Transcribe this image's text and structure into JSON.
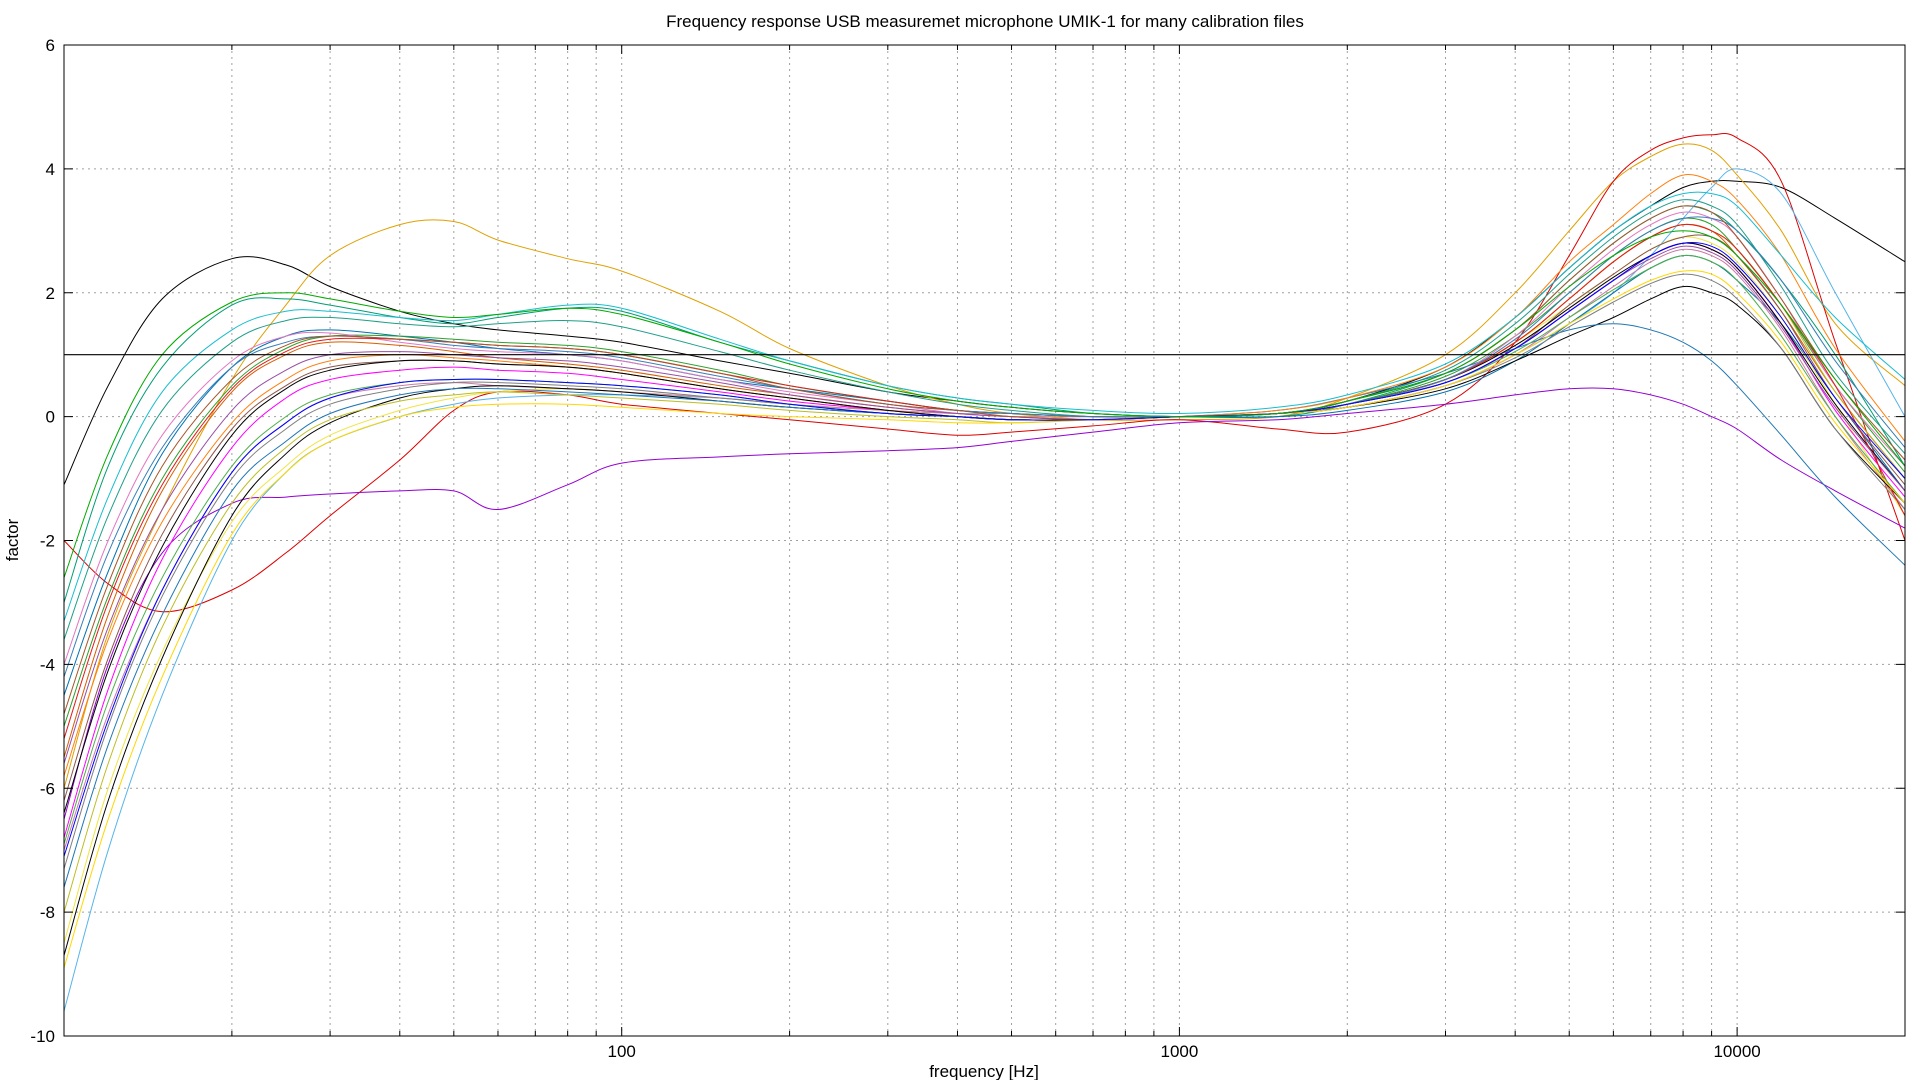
{
  "chart_data": {
    "type": "line",
    "title": "Frequency response USB measuremet microphone UMIK-1 for many calibration files",
    "xlabel": "frequency [Hz]",
    "ylabel": "factor",
    "xscale": "log",
    "xlim": [
      10,
      20000
    ],
    "ylim": [
      -10,
      6
    ],
    "xticks": [
      {
        "value": 100,
        "label": "100"
      },
      {
        "value": 1000,
        "label": "1000"
      },
      {
        "value": 10000,
        "label": "10000"
      }
    ],
    "yticks": [
      {
        "value": 6,
        "label": "6"
      },
      {
        "value": 4,
        "label": "4"
      },
      {
        "value": 2,
        "label": "2"
      },
      {
        "value": 0,
        "label": "0"
      },
      {
        "value": -2,
        "label": "-2"
      },
      {
        "value": -4,
        "label": "-4"
      },
      {
        "value": -6,
        "label": "-6"
      },
      {
        "value": -8,
        "label": "-8"
      },
      {
        "value": -10,
        "label": "-10"
      }
    ],
    "grid": true,
    "legend": "none",
    "reference_line": {
      "y": 1
    },
    "freq_points": [
      10,
      12,
      15,
      20,
      25,
      30,
      40,
      50,
      60,
      80,
      100,
      150,
      200,
      300,
      400,
      500,
      700,
      1000,
      1500,
      2000,
      3000,
      4000,
      5000,
      6000,
      7000,
      8000,
      9000,
      10000,
      12000,
      15000,
      20000
    ],
    "series": [
      {
        "color": "#000000",
        "values": [
          -1.1,
          0.5,
          1.9,
          2.55,
          2.45,
          2.1,
          1.7,
          1.5,
          1.4,
          1.3,
          1.2,
          0.9,
          0.7,
          0.4,
          0.25,
          0.15,
          0.05,
          0.0,
          0.05,
          0.25,
          0.8,
          1.6,
          2.4,
          3.0,
          3.4,
          3.7,
          3.8,
          3.8,
          3.7,
          3.2,
          2.5
        ]
      },
      {
        "color": "#e0a000",
        "values": [
          -6.0,
          -3.5,
          -1.5,
          0.6,
          1.8,
          2.6,
          3.1,
          3.15,
          2.85,
          2.55,
          2.35,
          1.7,
          1.1,
          0.5,
          0.2,
          0.05,
          -0.05,
          -0.05,
          0.0,
          0.3,
          1.0,
          2.0,
          3.0,
          3.8,
          4.2,
          4.4,
          4.3,
          3.9,
          3.0,
          1.5,
          0.5
        ]
      },
      {
        "color": "#dd0000",
        "values": [
          -2.0,
          -2.7,
          -3.15,
          -2.8,
          -2.2,
          -1.6,
          -0.7,
          0.1,
          0.4,
          0.35,
          0.2,
          0.05,
          -0.05,
          -0.2,
          -0.3,
          -0.25,
          -0.15,
          -0.05,
          -0.2,
          -0.25,
          0.2,
          1.2,
          2.6,
          3.8,
          4.3,
          4.5,
          4.55,
          4.5,
          3.8,
          1.2,
          -2.0
        ]
      },
      {
        "color": "#9400d3",
        "values": [
          -6.5,
          -4.0,
          -2.2,
          -1.4,
          -1.3,
          -1.25,
          -1.2,
          -1.2,
          -1.5,
          -1.1,
          -0.75,
          -0.65,
          -0.6,
          -0.55,
          -0.5,
          -0.4,
          -0.25,
          -0.1,
          -0.05,
          0.05,
          0.2,
          0.35,
          0.45,
          0.45,
          0.35,
          0.2,
          0.0,
          -0.2,
          -0.7,
          -1.2,
          -1.8
        ]
      },
      {
        "color": "#009e73",
        "values": [
          -3.0,
          -0.8,
          0.8,
          1.8,
          1.9,
          1.8,
          1.6,
          1.5,
          1.6,
          1.75,
          1.7,
          1.2,
          0.9,
          0.5,
          0.3,
          0.2,
          0.05,
          0.0,
          0.0,
          0.2,
          0.7,
          1.4,
          2.2,
          2.8,
          3.2,
          3.4,
          3.3,
          3.0,
          2.2,
          1.0,
          -0.8
        ]
      },
      {
        "color": "#56b4e9",
        "values": [
          -9.6,
          -7.0,
          -4.5,
          -2.0,
          -0.9,
          -0.4,
          0.0,
          0.2,
          0.3,
          0.35,
          0.35,
          0.3,
          0.2,
          0.1,
          0.05,
          0.05,
          0.0,
          0.0,
          0.05,
          0.15,
          0.5,
          1.0,
          1.5,
          2.0,
          2.6,
          3.2,
          3.7,
          4.0,
          3.6,
          2.0,
          0.0
        ]
      },
      {
        "color": "#0072b2",
        "values": [
          -4.5,
          -2.5,
          -0.6,
          0.8,
          1.3,
          1.4,
          1.3,
          1.2,
          1.1,
          1.0,
          0.9,
          0.6,
          0.45,
          0.25,
          0.1,
          0.05,
          0.0,
          0.0,
          0.0,
          0.1,
          0.4,
          0.9,
          1.5,
          2.0,
          2.4,
          2.6,
          2.5,
          2.2,
          1.5,
          0.3,
          -1.2
        ]
      },
      {
        "color": "#f0e442",
        "values": [
          -8.5,
          -6.0,
          -3.8,
          -1.7,
          -0.8,
          -0.3,
          0.1,
          0.3,
          0.4,
          0.45,
          0.4,
          0.3,
          0.2,
          0.1,
          0.05,
          0.0,
          0.0,
          0.0,
          0.05,
          0.2,
          0.6,
          1.2,
          1.8,
          2.3,
          2.7,
          2.9,
          2.8,
          2.5,
          1.6,
          0.2,
          -1.6
        ]
      },
      {
        "color": "#d55e00",
        "values": [
          -5.5,
          -3.2,
          -1.2,
          0.4,
          1.0,
          1.2,
          1.15,
          1.05,
          0.95,
          0.85,
          0.75,
          0.5,
          0.35,
          0.15,
          0.05,
          0.0,
          -0.05,
          0.0,
          0.05,
          0.2,
          0.6,
          1.2,
          1.9,
          2.5,
          2.9,
          3.1,
          3.0,
          2.6,
          1.7,
          0.4,
          -1.0
        ]
      },
      {
        "color": "#cc79a7",
        "values": [
          -7.0,
          -4.8,
          -2.8,
          -0.9,
          -0.1,
          0.3,
          0.5,
          0.55,
          0.5,
          0.45,
          0.4,
          0.3,
          0.2,
          0.1,
          0.05,
          0.0,
          0.0,
          0.0,
          0.05,
          0.15,
          0.5,
          1.0,
          1.6,
          2.1,
          2.5,
          2.7,
          2.6,
          2.3,
          1.4,
          0.0,
          -1.5
        ]
      },
      {
        "color": "#000000",
        "values": [
          -8.7,
          -6.2,
          -3.9,
          -1.6,
          -0.6,
          -0.1,
          0.3,
          0.45,
          0.5,
          0.45,
          0.4,
          0.25,
          0.15,
          0.05,
          0.0,
          -0.05,
          -0.05,
          0.0,
          0.05,
          0.15,
          0.45,
          0.9,
          1.3,
          1.6,
          1.9,
          2.1,
          2.0,
          1.8,
          1.1,
          -0.2,
          -1.4
        ]
      },
      {
        "color": "#1f9e89",
        "values": [
          -3.6,
          -1.6,
          0.1,
          1.2,
          1.55,
          1.6,
          1.5,
          1.45,
          1.5,
          1.55,
          1.45,
          1.05,
          0.75,
          0.4,
          0.2,
          0.1,
          0.0,
          0.0,
          0.05,
          0.25,
          0.75,
          1.5,
          2.3,
          2.9,
          3.3,
          3.5,
          3.4,
          3.1,
          2.1,
          0.7,
          -0.6
        ]
      },
      {
        "color": "#ff00ff",
        "values": [
          -6.8,
          -4.4,
          -2.3,
          -0.5,
          0.3,
          0.6,
          0.75,
          0.8,
          0.75,
          0.7,
          0.6,
          0.4,
          0.25,
          0.1,
          0.0,
          -0.05,
          -0.05,
          0.0,
          0.05,
          0.2,
          0.55,
          1.1,
          1.7,
          2.2,
          2.6,
          2.8,
          2.7,
          2.4,
          1.5,
          0.1,
          -1.3
        ]
      },
      {
        "color": "#2ca02c",
        "values": [
          -5.0,
          -2.9,
          -1.0,
          0.5,
          1.1,
          1.3,
          1.3,
          1.25,
          1.2,
          1.15,
          1.05,
          0.75,
          0.5,
          0.25,
          0.1,
          0.05,
          0.0,
          0.0,
          0.05,
          0.2,
          0.65,
          1.3,
          2.0,
          2.6,
          3.0,
          3.2,
          3.1,
          2.7,
          1.8,
          0.5,
          -0.9
        ]
      },
      {
        "color": "#1f77b4",
        "values": [
          -7.6,
          -5.3,
          -3.2,
          -1.2,
          -0.4,
          0.05,
          0.35,
          0.45,
          0.45,
          0.4,
          0.35,
          0.25,
          0.15,
          0.05,
          0.0,
          -0.05,
          -0.05,
          0.0,
          0.1,
          0.3,
          0.7,
          1.1,
          1.4,
          1.5,
          1.4,
          1.2,
          0.9,
          0.5,
          -0.3,
          -1.3,
          -2.4
        ]
      },
      {
        "color": "#e377c2",
        "values": [
          -4.0,
          -2.0,
          -0.3,
          0.9,
          1.3,
          1.35,
          1.2,
          1.1,
          1.05,
          1.0,
          0.9,
          0.6,
          0.4,
          0.2,
          0.05,
          0.0,
          -0.05,
          0.0,
          0.05,
          0.2,
          0.6,
          1.3,
          2.1,
          2.7,
          3.1,
          3.3,
          3.2,
          2.9,
          1.9,
          0.5,
          -0.8
        ]
      },
      {
        "color": "#8c564b",
        "values": [
          -6.2,
          -3.9,
          -1.9,
          -0.2,
          0.5,
          0.8,
          0.9,
          0.9,
          0.85,
          0.8,
          0.7,
          0.45,
          0.3,
          0.1,
          0.0,
          -0.05,
          -0.05,
          0.0,
          0.05,
          0.2,
          0.55,
          1.1,
          1.8,
          2.3,
          2.7,
          2.9,
          2.9,
          2.6,
          1.7,
          0.3,
          -1.1
        ]
      },
      {
        "color": "#ff7f0e",
        "values": [
          -5.8,
          -3.6,
          -1.7,
          -0.1,
          0.6,
          0.9,
          1.0,
          0.95,
          0.9,
          0.8,
          0.7,
          0.45,
          0.3,
          0.1,
          0.0,
          -0.05,
          -0.05,
          0.0,
          0.1,
          0.3,
          0.8,
          1.6,
          2.5,
          3.1,
          3.6,
          3.9,
          3.8,
          3.5,
          2.6,
          1.1,
          -0.4
        ]
      },
      {
        "color": "#7f7f7f",
        "values": [
          -7.3,
          -5.0,
          -2.9,
          -1.0,
          -0.2,
          0.2,
          0.45,
          0.55,
          0.55,
          0.5,
          0.45,
          0.3,
          0.2,
          0.05,
          0.0,
          -0.05,
          -0.05,
          0.0,
          0.05,
          0.15,
          0.5,
          0.95,
          1.45,
          1.85,
          2.15,
          2.3,
          2.2,
          1.9,
          1.1,
          -0.2,
          -1.5
        ]
      },
      {
        "color": "#bcbd22",
        "values": [
          -8.0,
          -5.6,
          -3.4,
          -1.4,
          -0.5,
          -0.05,
          0.25,
          0.35,
          0.4,
          0.35,
          0.3,
          0.2,
          0.1,
          0.0,
          -0.05,
          -0.1,
          -0.05,
          0.0,
          0.05,
          0.2,
          0.6,
          1.2,
          1.9,
          2.5,
          2.9,
          3.1,
          3.0,
          2.7,
          1.8,
          0.4,
          -1.0
        ]
      },
      {
        "color": "#17becf",
        "values": [
          -3.3,
          -1.3,
          0.4,
          1.4,
          1.7,
          1.7,
          1.6,
          1.55,
          1.65,
          1.8,
          1.75,
          1.25,
          0.9,
          0.5,
          0.3,
          0.2,
          0.1,
          0.05,
          0.15,
          0.35,
          0.85,
          1.6,
          2.4,
          3.0,
          3.4,
          3.6,
          3.6,
          3.4,
          2.6,
          1.6,
          0.6
        ]
      },
      {
        "color": "#000000",
        "values": [
          -6.4,
          -4.1,
          -2.1,
          -0.3,
          0.45,
          0.75,
          0.9,
          0.9,
          0.85,
          0.8,
          0.7,
          0.45,
          0.3,
          0.1,
          0.0,
          -0.05,
          -0.05,
          0.0,
          0.05,
          0.2,
          0.6,
          1.15,
          1.75,
          2.25,
          2.6,
          2.8,
          2.7,
          2.4,
          1.5,
          0.2,
          -1.2
        ]
      },
      {
        "color": "#e41a1c",
        "values": [
          -5.2,
          -3.0,
          -1.1,
          0.45,
          1.05,
          1.25,
          1.25,
          1.2,
          1.15,
          1.1,
          1.0,
          0.7,
          0.5,
          0.25,
          0.1,
          0.05,
          0.0,
          0.0,
          0.05,
          0.2,
          0.6,
          1.2,
          1.9,
          2.5,
          2.9,
          3.1,
          3.0,
          2.7,
          1.8,
          0.5,
          -1.6
        ]
      },
      {
        "color": "#377eb8",
        "values": [
          -4.2,
          -2.2,
          -0.5,
          0.8,
          1.2,
          1.3,
          1.25,
          1.15,
          1.1,
          1.05,
          0.95,
          0.65,
          0.45,
          0.2,
          0.1,
          0.05,
          0.0,
          0.0,
          0.05,
          0.2,
          0.6,
          1.25,
          2.0,
          2.6,
          3.0,
          3.2,
          3.2,
          3.0,
          2.2,
          0.9,
          -0.5
        ]
      },
      {
        "color": "#4daf4a",
        "values": [
          -6.9,
          -4.6,
          -2.6,
          -0.8,
          0.0,
          0.35,
          0.55,
          0.6,
          0.6,
          0.55,
          0.5,
          0.35,
          0.2,
          0.05,
          0.0,
          -0.05,
          -0.05,
          0.0,
          0.05,
          0.2,
          0.55,
          1.05,
          1.6,
          2.05,
          2.4,
          2.6,
          2.5,
          2.2,
          1.3,
          0.0,
          -1.4
        ]
      },
      {
        "color": "#984ea3",
        "values": [
          -5.6,
          -3.4,
          -1.5,
          0.1,
          0.75,
          1.0,
          1.05,
          1.0,
          0.95,
          0.9,
          0.8,
          0.55,
          0.35,
          0.15,
          0.05,
          0.0,
          -0.05,
          0.0,
          0.05,
          0.2,
          0.55,
          1.1,
          1.7,
          2.2,
          2.55,
          2.75,
          2.65,
          2.35,
          1.45,
          0.15,
          -1.2
        ]
      },
      {
        "color": "#ffd700",
        "values": [
          -8.9,
          -6.5,
          -4.2,
          -1.9,
          -0.9,
          -0.4,
          0.0,
          0.15,
          0.2,
          0.2,
          0.15,
          0.05,
          0.0,
          -0.05,
          -0.1,
          -0.1,
          -0.05,
          0.0,
          0.05,
          0.15,
          0.5,
          1.0,
          1.5,
          1.9,
          2.2,
          2.35,
          2.3,
          2.0,
          1.2,
          -0.1,
          -1.4
        ]
      },
      {
        "color": "#a65628",
        "values": [
          -4.8,
          -2.7,
          -0.8,
          0.6,
          1.15,
          1.3,
          1.25,
          1.2,
          1.15,
          1.1,
          1.0,
          0.7,
          0.45,
          0.2,
          0.1,
          0.0,
          -0.05,
          0.0,
          0.05,
          0.25,
          0.7,
          1.4,
          2.2,
          2.8,
          3.2,
          3.4,
          3.3,
          2.9,
          1.9,
          0.6,
          -0.7
        ]
      },
      {
        "color": "#0000ff",
        "values": [
          -7.1,
          -4.9,
          -2.8,
          -0.9,
          -0.1,
          0.3,
          0.55,
          0.6,
          0.6,
          0.55,
          0.5,
          0.35,
          0.2,
          0.05,
          0.0,
          -0.05,
          -0.05,
          0.0,
          0.05,
          0.2,
          0.55,
          1.1,
          1.7,
          2.2,
          2.6,
          2.8,
          2.75,
          2.45,
          1.6,
          0.3,
          -1.0
        ]
      },
      {
        "color": "#00aa00",
        "values": [
          -2.6,
          -0.6,
          1.0,
          1.85,
          2.0,
          1.9,
          1.7,
          1.6,
          1.65,
          1.75,
          1.65,
          1.2,
          0.85,
          0.45,
          0.25,
          0.15,
          0.05,
          0.0,
          0.05,
          0.25,
          0.7,
          1.4,
          2.1,
          2.6,
          2.9,
          3.0,
          2.9,
          2.6,
          1.8,
          0.6,
          -0.8
        ]
      }
    ]
  }
}
